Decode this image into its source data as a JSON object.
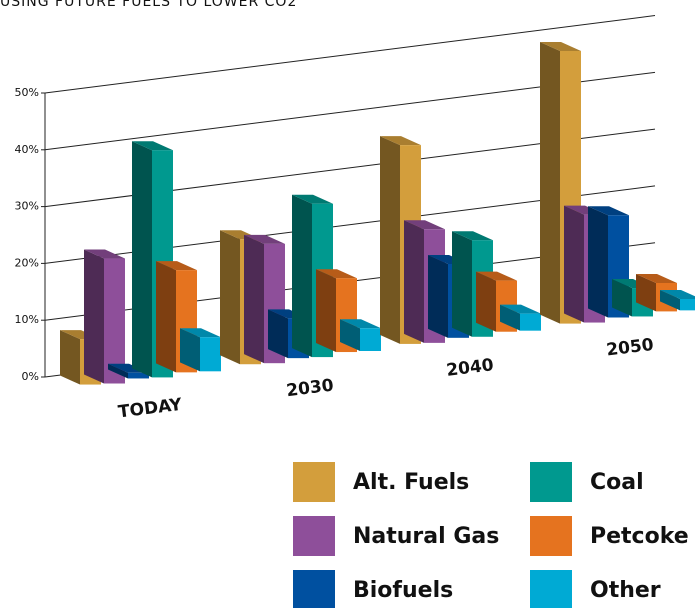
{
  "chart_data": {
    "type": "bar3d",
    "title": "USING FUTURE FUELS TO LOWER CO2",
    "categories": [
      "TODAY",
      "2030",
      "2040",
      "2050"
    ],
    "series": [
      {
        "name": "Alt. Fuels",
        "color": "#d39e3c",
        "values": [
          8,
          22,
          35,
          48
        ]
      },
      {
        "name": "Natural Gas",
        "color": "#8e4f9a",
        "values": [
          22,
          21,
          20,
          19
        ]
      },
      {
        "name": "Biofuels",
        "color": "#0050a0",
        "values": [
          1,
          7,
          13,
          18
        ]
      },
      {
        "name": "Coal",
        "color": "#00998f",
        "values": [
          40,
          27,
          17,
          5
        ]
      },
      {
        "name": "Petcoke",
        "color": "#e5731f",
        "values": [
          18,
          13,
          9,
          5
        ]
      },
      {
        "name": "Other",
        "color": "#00aad4",
        "values": [
          6,
          4,
          3,
          2
        ]
      }
    ],
    "ylim": [
      0,
      50
    ],
    "yticks": [
      {
        "value": 0,
        "label": "0%"
      },
      {
        "value": 10,
        "label": "10%"
      },
      {
        "value": 20,
        "label": "20%"
      },
      {
        "value": 30,
        "label": "30%"
      },
      {
        "value": 40,
        "label": "40%"
      },
      {
        "value": 50,
        "label": "50%"
      }
    ],
    "grid": true
  }
}
